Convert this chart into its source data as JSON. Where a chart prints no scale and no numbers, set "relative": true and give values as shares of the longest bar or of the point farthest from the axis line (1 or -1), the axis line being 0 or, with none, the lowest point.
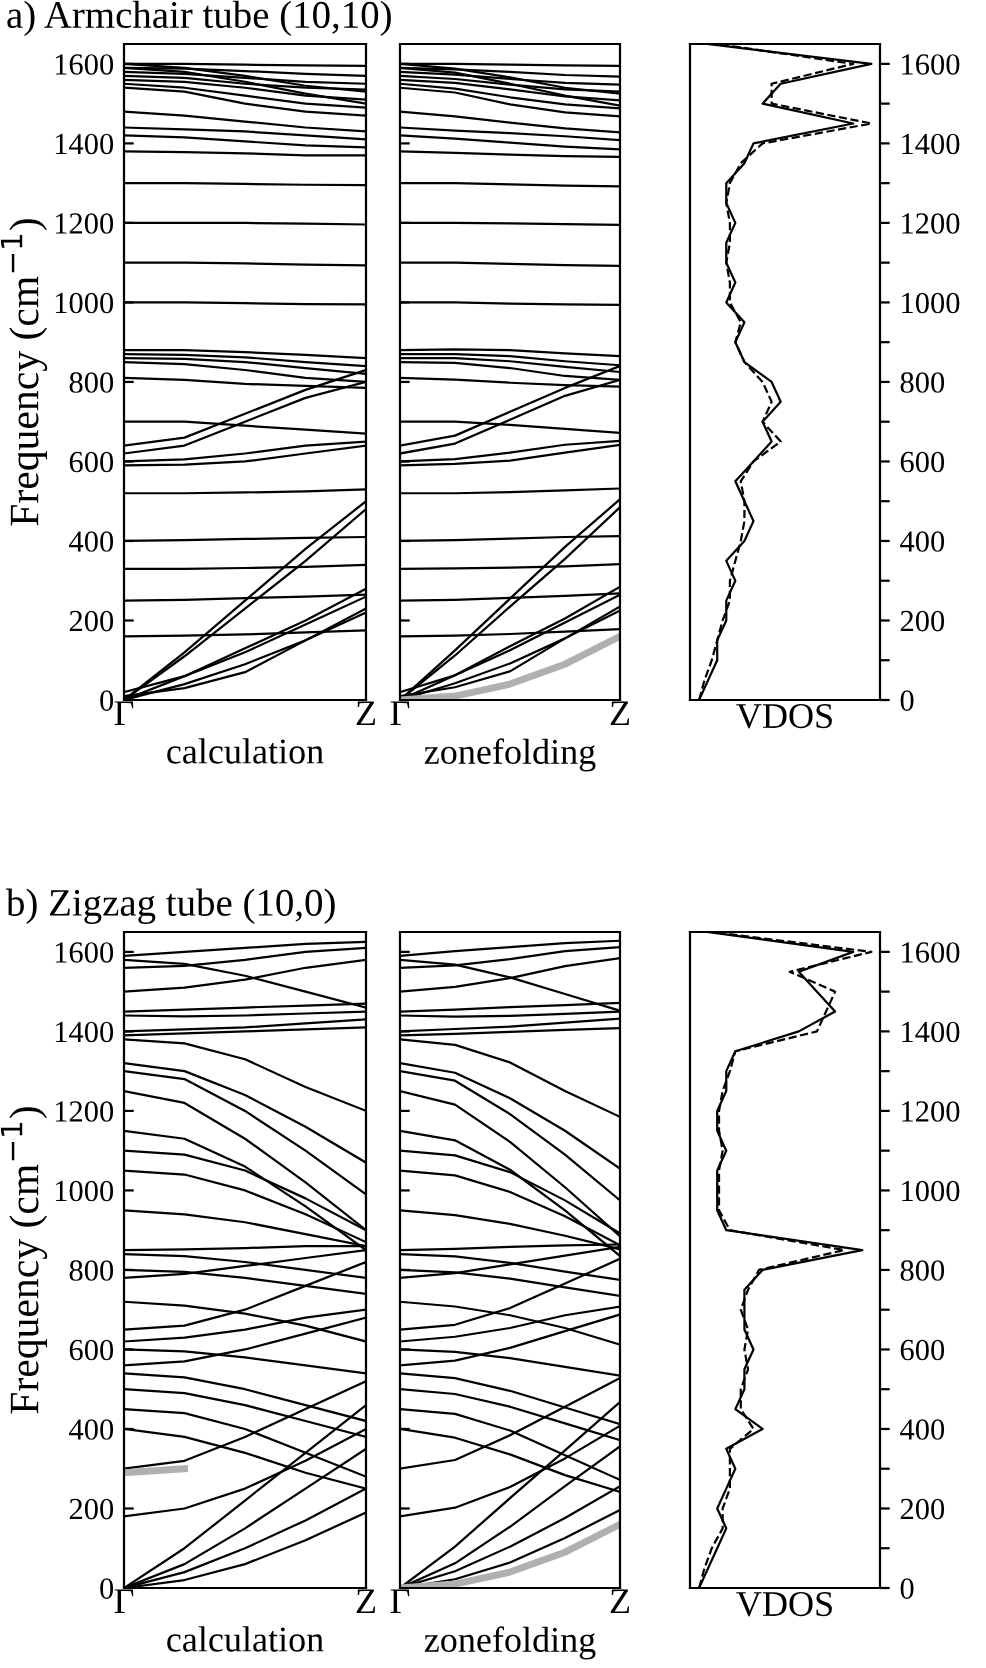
{
  "chart_data": [
    {
      "type": "line",
      "title": "a) Armchair tube (10,10)",
      "xlabel": "calculation",
      "ylabel": "Frequency (cm$^{−1}$)",
      "color": "#000000",
      "categories": [
        "Γ",
        null,
        null,
        null,
        "Z"
      ],
      "ylim": [
        0,
        1650
      ],
      "yticks": [
        0,
        200,
        400,
        600,
        800,
        1000,
        1200,
        1400,
        1600
      ],
      "series": [
        {
          "values": [
            1600,
            1600,
            1598,
            1596,
            1595
          ]
        },
        {
          "values": [
            1590,
            1588,
            1582,
            1575,
            1570
          ]
        },
        {
          "values": [
            1580,
            1575,
            1565,
            1555,
            1550
          ]
        },
        {
          "values": [
            1570,
            1565,
            1550,
            1540,
            1535
          ]
        },
        {
          "values": [
            1560,
            1555,
            1540,
            1520,
            1510
          ]
        },
        {
          "values": [
            1550,
            1540,
            1520,
            1500,
            1490
          ]
        },
        {
          "values": [
            1540,
            1530,
            1500,
            1480,
            1470
          ]
        },
        {
          "values": [
            1600,
            1590,
            1570,
            1545,
            1530
          ]
        },
        {
          "values": [
            1590,
            1580,
            1555,
            1525,
            1500
          ]
        },
        {
          "values": [
            1480,
            1470,
            1455,
            1440,
            1430
          ]
        },
        {
          "values": [
            1440,
            1435,
            1430,
            1420,
            1410
          ]
        },
        {
          "values": [
            1420,
            1415,
            1405,
            1395,
            1390
          ]
        },
        {
          "values": [
            1380,
            1378,
            1375,
            1370,
            1370
          ]
        },
        {
          "values": [
            1300,
            1300,
            1298,
            1296,
            1295
          ]
        },
        {
          "values": [
            1200,
            1200,
            1200,
            1198,
            1196
          ]
        },
        {
          "values": [
            1100,
            1100,
            1098,
            1095,
            1093
          ]
        },
        {
          "values": [
            1000,
            1000,
            998,
            996,
            995
          ]
        },
        {
          "values": [
            880,
            880,
            875,
            868,
            860
          ]
        },
        {
          "values": [
            870,
            868,
            862,
            850,
            840
          ]
        },
        {
          "values": [
            860,
            858,
            850,
            835,
            820
          ]
        },
        {
          "values": [
            850,
            845,
            830,
            810,
            800
          ]
        },
        {
          "values": [
            810,
            805,
            795,
            790,
            785
          ]
        },
        {
          "values": [
            700,
            700,
            690,
            680,
            670
          ]
        },
        {
          "values": [
            640,
            660,
            720,
            780,
            830
          ]
        },
        {
          "values": [
            620,
            640,
            700,
            760,
            800
          ]
        },
        {
          "values": [
            600,
            605,
            620,
            640,
            650
          ]
        },
        {
          "values": [
            590,
            592,
            600,
            620,
            640
          ]
        },
        {
          "values": [
            520,
            520,
            522,
            525,
            530
          ]
        },
        {
          "values": [
            400,
            402,
            405,
            408,
            410
          ]
        },
        {
          "values": [
            330,
            330,
            332,
            335,
            340
          ]
        },
        {
          "values": [
            250,
            252,
            256,
            260,
            265
          ]
        },
        {
          "values": [
            160,
            162,
            165,
            170,
            175
          ]
        },
        {
          "values": [
            0,
            120,
            250,
            380,
            500
          ]
        },
        {
          "values": [
            0,
            110,
            230,
            350,
            480
          ]
        },
        {
          "values": [
            0,
            60,
            130,
            200,
            280
          ]
        },
        {
          "values": [
            0,
            40,
            90,
            150,
            220
          ]
        },
        {
          "values": [
            20,
            60,
            120,
            190,
            260
          ]
        },
        {
          "values": [
            10,
            30,
            70,
            150,
            230
          ]
        }
      ]
    },
    {
      "type": "line",
      "xlabel": "zonefolding",
      "color": "#000000",
      "categories": [
        "Γ",
        null,
        null,
        null,
        "Z"
      ],
      "ylim": [
        0,
        1650
      ],
      "yticks": [
        0,
        200,
        400,
        600,
        800,
        1000,
        1200,
        1400,
        1600
      ],
      "tick_labels": "x",
      "series": [
        {
          "values": [
            1600,
            1600,
            1598,
            1596,
            1595
          ]
        },
        {
          "values": [
            1590,
            1586,
            1580,
            1572,
            1568
          ]
        },
        {
          "values": [
            1580,
            1573,
            1562,
            1552,
            1548
          ]
        },
        {
          "values": [
            1570,
            1562,
            1548,
            1536,
            1530
          ]
        },
        {
          "values": [
            1560,
            1552,
            1536,
            1518,
            1508
          ]
        },
        {
          "values": [
            1550,
            1538,
            1516,
            1498,
            1488
          ]
        },
        {
          "values": [
            1540,
            1528,
            1498,
            1478,
            1468
          ]
        },
        {
          "values": [
            1600,
            1588,
            1566,
            1540,
            1525
          ]
        },
        {
          "values": [
            1590,
            1578,
            1550,
            1520,
            1495
          ]
        },
        {
          "values": [
            1480,
            1468,
            1452,
            1438,
            1428
          ]
        },
        {
          "values": [
            1440,
            1432,
            1426,
            1418,
            1408
          ]
        },
        {
          "values": [
            1420,
            1412,
            1402,
            1392,
            1385
          ]
        },
        {
          "values": [
            1380,
            1376,
            1372,
            1368,
            1366
          ]
        },
        {
          "values": [
            1300,
            1300,
            1297,
            1294,
            1292
          ]
        },
        {
          "values": [
            1200,
            1200,
            1199,
            1197,
            1195
          ]
        },
        {
          "values": [
            1100,
            1100,
            1097,
            1094,
            1092
          ]
        },
        {
          "values": [
            1000,
            1000,
            997,
            995,
            994
          ]
        },
        {
          "values": [
            880,
            882,
            880,
            872,
            865
          ]
        },
        {
          "values": [
            870,
            870,
            865,
            852,
            842
          ]
        },
        {
          "values": [
            860,
            860,
            852,
            838,
            825
          ]
        },
        {
          "values": [
            850,
            848,
            835,
            815,
            805
          ]
        },
        {
          "values": [
            810,
            806,
            798,
            792,
            788
          ]
        },
        {
          "values": [
            700,
            700,
            692,
            682,
            672
          ]
        },
        {
          "values": [
            640,
            665,
            725,
            785,
            840
          ]
        },
        {
          "values": [
            620,
            645,
            705,
            765,
            805
          ]
        },
        {
          "values": [
            600,
            606,
            622,
            642,
            652
          ]
        },
        {
          "values": [
            590,
            594,
            602,
            622,
            642
          ]
        },
        {
          "values": [
            520,
            520,
            523,
            527,
            532
          ]
        },
        {
          "values": [
            400,
            402,
            406,
            410,
            412
          ]
        },
        {
          "values": [
            330,
            331,
            333,
            336,
            342
          ]
        },
        {
          "values": [
            250,
            252,
            257,
            262,
            268
          ]
        },
        {
          "values": [
            160,
            162,
            166,
            172,
            178
          ]
        },
        {
          "values": [
            0,
            125,
            255,
            385,
            505
          ]
        },
        {
          "values": [
            0,
            112,
            235,
            355,
            485
          ]
        },
        {
          "values": [
            0,
            62,
            135,
            205,
            285
          ]
        },
        {
          "values": [
            0,
            42,
            92,
            155,
            225
          ]
        },
        {
          "values": [
            20,
            62,
            125,
            195,
            265
          ]
        },
        {
          "values": [
            10,
            32,
            72,
            155,
            235
          ]
        },
        {
          "color": "#b0b0b0",
          "values": [
            0,
            10,
            40,
            90,
            160
          ]
        }
      ]
    },
    {
      "type": "line",
      "orientation": "horizontal",
      "relative": true,
      "xlabel": "VDOS",
      "x": [
        0,
        50,
        100,
        150,
        200,
        250,
        300,
        350,
        400,
        450,
        500,
        550,
        600,
        650,
        700,
        750,
        800,
        850,
        900,
        950,
        1000,
        1050,
        1100,
        1150,
        1200,
        1250,
        1300,
        1350,
        1400,
        1450,
        1500,
        1550,
        1600,
        1650
      ],
      "ylim": [
        0,
        1650
      ],
      "yticks": [
        0,
        {
          "value": 100,
          "label": null
        },
        200,
        {
          "value": 300,
          "label": null
        },
        400,
        {
          "value": 500,
          "label": null
        },
        600,
        {
          "value": 700,
          "label": null
        },
        800,
        {
          "value": 900,
          "label": null
        },
        1000,
        {
          "value": 1100,
          "label": null
        },
        1200,
        {
          "value": 1300,
          "label": null
        },
        1400,
        {
          "value": 1500,
          "label": null
        },
        1600
      ],
      "tick_labels": "y",
      "series": [
        {
          "color": "#000000",
          "line_style": "solid",
          "values": [
            0.05,
            0.1,
            0.15,
            0.15,
            0.2,
            0.2,
            0.25,
            0.2,
            0.3,
            0.35,
            0.3,
            0.25,
            0.35,
            0.45,
            0.4,
            0.5,
            0.45,
            0.3,
            0.25,
            0.3,
            0.2,
            0.25,
            0.2,
            0.2,
            0.25,
            0.2,
            0.2,
            0.3,
            0.35,
            0.9,
            0.4,
            0.5,
            1.0,
            0.1
          ]
        },
        {
          "color": "#000000",
          "line_style": "dashed",
          "values": [
            0.05,
            0.08,
            0.12,
            0.15,
            0.18,
            0.22,
            0.22,
            0.25,
            0.28,
            0.3,
            0.3,
            0.28,
            0.35,
            0.5,
            0.4,
            0.45,
            0.4,
            0.3,
            0.25,
            0.28,
            0.22,
            0.22,
            0.2,
            0.22,
            0.22,
            0.2,
            0.22,
            0.28,
            0.4,
            1.0,
            0.45,
            0.45,
            0.9,
            0.15
          ]
        }
      ]
    },
    {
      "type": "line",
      "title": "b) Zigzag tube (10,0)",
      "xlabel": "calculation",
      "ylabel": "Frequency (cm$^{−1}$)",
      "color": "#000000",
      "categories": [
        "Γ",
        null,
        null,
        null,
        "Z"
      ],
      "ylim": [
        0,
        1650
      ],
      "yticks": [
        0,
        200,
        400,
        600,
        800,
        1000,
        1200,
        1400,
        1600
      ],
      "series": [
        {
          "values": [
            1590,
            1600,
            1610,
            1620,
            1625
          ]
        },
        {
          "values": [
            1580,
            1570,
            1540,
            1500,
            1460
          ]
        },
        {
          "values": [
            1560,
            1565,
            1580,
            1600,
            1610
          ]
        },
        {
          "values": [
            1500,
            1510,
            1530,
            1560,
            1580
          ]
        },
        {
          "values": [
            1450,
            1455,
            1460,
            1465,
            1470
          ]
        },
        {
          "values": [
            1440,
            1438,
            1440,
            1445,
            1450
          ]
        },
        {
          "values": [
            1400,
            1405,
            1410,
            1420,
            1430
          ]
        },
        {
          "values": [
            1390,
            1395,
            1400,
            1405,
            1410
          ]
        },
        {
          "values": [
            1380,
            1370,
            1330,
            1260,
            1200
          ]
        },
        {
          "values": [
            1320,
            1300,
            1240,
            1160,
            1070
          ]
        },
        {
          "values": [
            1300,
            1280,
            1200,
            1100,
            990
          ]
        },
        {
          "values": [
            1250,
            1220,
            1130,
            1020,
            900
          ]
        },
        {
          "values": [
            1150,
            1130,
            1060,
            960,
            850
          ]
        },
        {
          "values": [
            1100,
            1090,
            1050,
            980,
            900
          ]
        },
        {
          "values": [
            1050,
            1040,
            1000,
            940,
            870
          ]
        },
        {
          "values": [
            950,
            940,
            920,
            890,
            860
          ]
        },
        {
          "values": [
            850,
            852,
            855,
            860,
            860
          ]
        },
        {
          "values": [
            840,
            835,
            820,
            800,
            780
          ]
        },
        {
          "values": [
            800,
            795,
            780,
            760,
            740
          ]
        },
        {
          "values": [
            780,
            790,
            810,
            830,
            850
          ]
        },
        {
          "values": [
            720,
            710,
            690,
            660,
            620
          ]
        },
        {
          "values": [
            650,
            660,
            700,
            760,
            820
          ]
        },
        {
          "values": [
            620,
            630,
            650,
            680,
            700
          ]
        },
        {
          "values": [
            600,
            595,
            580,
            560,
            540
          ]
        },
        {
          "values": [
            560,
            570,
            600,
            640,
            680
          ]
        },
        {
          "values": [
            540,
            530,
            500,
            460,
            420
          ]
        },
        {
          "values": [
            500,
            490,
            460,
            420,
            380
          ]
        },
        {
          "values": [
            450,
            440,
            400,
            340,
            280
          ]
        },
        {
          "values": [
            400,
            380,
            340,
            290,
            250
          ]
        },
        {
          "values": [
            300,
            320,
            380,
            450,
            520
          ]
        },
        {
          "values": [
            180,
            200,
            250,
            320,
            400
          ]
        },
        {
          "values": [
            0,
            100,
            220,
            340,
            460
          ]
        },
        {
          "values": [
            0,
            60,
            150,
            250,
            350
          ]
        },
        {
          "values": [
            0,
            40,
            100,
            170,
            250
          ]
        },
        {
          "values": [
            0,
            20,
            60,
            120,
            190
          ]
        },
        {
          "color": "#b0b0b0",
          "values": [
            290,
            300,
            null,
            null,
            null
          ]
        }
      ]
    },
    {
      "type": "line",
      "xlabel": "zonefolding",
      "color": "#000000",
      "categories": [
        "Γ",
        null,
        null,
        null,
        "Z"
      ],
      "ylim": [
        0,
        1650
      ],
      "yticks": [
        0,
        200,
        400,
        600,
        800,
        1000,
        1200,
        1400,
        1600
      ],
      "tick_labels": "x",
      "series": [
        {
          "values": [
            1590,
            1602,
            1612,
            1622,
            1628
          ]
        },
        {
          "values": [
            1580,
            1568,
            1536,
            1494,
            1452
          ]
        },
        {
          "values": [
            1560,
            1566,
            1582,
            1602,
            1612
          ]
        },
        {
          "values": [
            1500,
            1512,
            1534,
            1564,
            1584
          ]
        },
        {
          "values": [
            1450,
            1455,
            1461,
            1466,
            1472
          ]
        },
        {
          "values": [
            1440,
            1437,
            1439,
            1444,
            1450
          ]
        },
        {
          "values": [
            1400,
            1406,
            1412,
            1422,
            1432
          ]
        },
        {
          "values": [
            1390,
            1394,
            1399,
            1404,
            1408
          ]
        },
        {
          "values": [
            1380,
            1366,
            1322,
            1250,
            1185
          ]
        },
        {
          "values": [
            1320,
            1296,
            1232,
            1150,
            1055
          ]
        },
        {
          "values": [
            1300,
            1276,
            1192,
            1090,
            975
          ]
        },
        {
          "values": [
            1250,
            1216,
            1122,
            1008,
            885
          ]
        },
        {
          "values": [
            1150,
            1126,
            1052,
            950,
            835
          ]
        },
        {
          "values": [
            1100,
            1088,
            1046,
            975,
            892
          ]
        },
        {
          "values": [
            1050,
            1038,
            996,
            935,
            862
          ]
        },
        {
          "values": [
            950,
            938,
            916,
            886,
            852
          ]
        },
        {
          "values": [
            850,
            853,
            858,
            862,
            864
          ]
        },
        {
          "values": [
            840,
            834,
            818,
            796,
            775
          ]
        },
        {
          "values": [
            800,
            794,
            778,
            756,
            735
          ]
        },
        {
          "values": [
            780,
            792,
            814,
            836,
            858
          ]
        },
        {
          "values": [
            720,
            708,
            686,
            654,
            612
          ]
        },
        {
          "values": [
            650,
            662,
            704,
            766,
            828
          ]
        },
        {
          "values": [
            620,
            632,
            654,
            686,
            708
          ]
        },
        {
          "values": [
            600,
            594,
            578,
            556,
            534
          ]
        },
        {
          "values": [
            560,
            572,
            604,
            646,
            688
          ]
        },
        {
          "values": [
            540,
            528,
            496,
            454,
            412
          ]
        },
        {
          "values": [
            500,
            488,
            456,
            414,
            372
          ]
        },
        {
          "values": [
            450,
            438,
            396,
            334,
            272
          ]
        },
        {
          "values": [
            400,
            378,
            336,
            284,
            242
          ]
        },
        {
          "values": [
            300,
            322,
            384,
            456,
            528
          ]
        },
        {
          "values": [
            180,
            202,
            254,
            326,
            408
          ]
        },
        {
          "values": [
            0,
            104,
            226,
            346,
            468
          ]
        },
        {
          "values": [
            0,
            62,
            154,
            256,
            356
          ]
        },
        {
          "values": [
            0,
            42,
            104,
            176,
            256
          ]
        },
        {
          "values": [
            0,
            22,
            64,
            126,
            196
          ]
        },
        {
          "color": "#b0b0b0",
          "values": [
            0,
            10,
            40,
            90,
            160
          ]
        }
      ]
    },
    {
      "type": "line",
      "orientation": "horizontal",
      "relative": true,
      "xlabel": "VDOS",
      "x": [
        0,
        50,
        100,
        150,
        200,
        250,
        300,
        350,
        400,
        450,
        500,
        550,
        600,
        650,
        700,
        750,
        800,
        850,
        900,
        950,
        1000,
        1050,
        1100,
        1150,
        1200,
        1250,
        1300,
        1350,
        1400,
        1450,
        1500,
        1550,
        1600,
        1650
      ],
      "ylim": [
        0,
        1650
      ],
      "yticks": [
        0,
        {
          "value": 100,
          "label": null
        },
        200,
        {
          "value": 300,
          "label": null
        },
        400,
        {
          "value": 500,
          "label": null
        },
        600,
        {
          "value": 700,
          "label": null
        },
        800,
        {
          "value": 900,
          "label": null
        },
        1000,
        {
          "value": 1100,
          "label": null
        },
        1200,
        {
          "value": 1300,
          "label": null
        },
        1400,
        {
          "value": 1500,
          "label": null
        },
        1600
      ],
      "tick_labels": "y",
      "series": [
        {
          "color": "#000000",
          "line_style": "solid",
          "values": [
            0.05,
            0.1,
            0.15,
            0.2,
            0.15,
            0.2,
            0.25,
            0.2,
            0.4,
            0.25,
            0.3,
            0.3,
            0.35,
            0.3,
            0.3,
            0.3,
            0.4,
            0.95,
            0.2,
            0.15,
            0.15,
            0.15,
            0.2,
            0.15,
            0.15,
            0.2,
            0.2,
            0.25,
            0.6,
            0.8,
            0.7,
            0.6,
            0.9,
            0.1
          ]
        },
        {
          "color": "#000000",
          "line_style": "dashed",
          "values": [
            0.05,
            0.08,
            0.12,
            0.18,
            0.18,
            0.22,
            0.22,
            0.22,
            0.35,
            0.28,
            0.28,
            0.32,
            0.3,
            0.32,
            0.28,
            0.32,
            0.38,
            0.85,
            0.22,
            0.16,
            0.16,
            0.16,
            0.18,
            0.16,
            0.16,
            0.18,
            0.22,
            0.25,
            0.7,
            0.75,
            0.8,
            0.55,
            1.0,
            0.12
          ]
        }
      ]
    }
  ]
}
